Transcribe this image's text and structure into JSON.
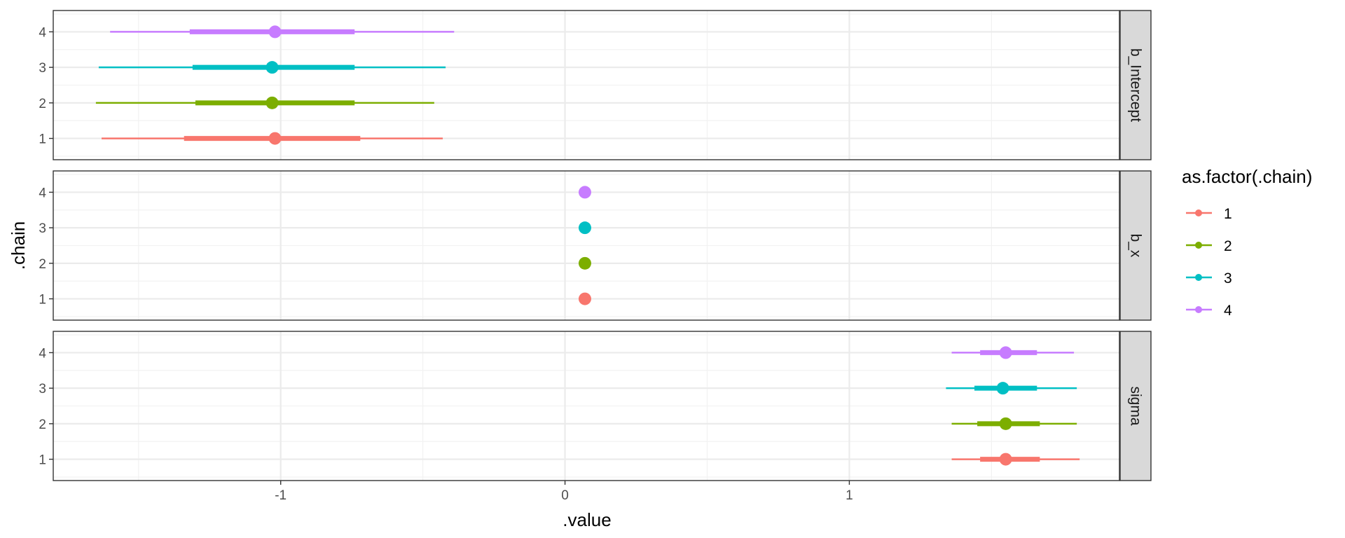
{
  "chart_data": {
    "type": "pointrange",
    "facet_by": "panel",
    "facet_strip_position": "right",
    "xlabel": ".value",
    "ylabel": ".chain",
    "xlim": [
      -1.8,
      1.95
    ],
    "x_ticks": [
      -1,
      0,
      1
    ],
    "x_tick_labels": [
      "-1",
      "0",
      "1"
    ],
    "y_categories": [
      "1",
      "2",
      "3",
      "4"
    ],
    "grid": true,
    "legend": {
      "title": "as.factor(.chain)",
      "placement": "right",
      "entries": [
        "1",
        "2",
        "3",
        "4"
      ],
      "colors": [
        "#F8766D",
        "#7CAE00",
        "#00BFC4",
        "#C77CFF"
      ]
    },
    "panels": [
      {
        "label": "b_Intercept",
        "series": [
          {
            "chain": "1",
            "point": -1.02,
            "inner": [
              -1.34,
              -0.72
            ],
            "outer": [
              -1.63,
              -0.43
            ]
          },
          {
            "chain": "2",
            "point": -1.03,
            "inner": [
              -1.3,
              -0.74
            ],
            "outer": [
              -1.65,
              -0.46
            ]
          },
          {
            "chain": "3",
            "point": -1.03,
            "inner": [
              -1.31,
              -0.74
            ],
            "outer": [
              -1.64,
              -0.42
            ]
          },
          {
            "chain": "4",
            "point": -1.02,
            "inner": [
              -1.32,
              -0.74
            ],
            "outer": [
              -1.6,
              -0.39
            ]
          }
        ]
      },
      {
        "label": "b_x",
        "series": [
          {
            "chain": "1",
            "point": 0.07,
            "inner": [
              0.07,
              0.07
            ],
            "outer": [
              0.07,
              0.07
            ]
          },
          {
            "chain": "2",
            "point": 0.07,
            "inner": [
              0.07,
              0.07
            ],
            "outer": [
              0.07,
              0.07
            ]
          },
          {
            "chain": "3",
            "point": 0.07,
            "inner": [
              0.07,
              0.07
            ],
            "outer": [
              0.07,
              0.07
            ]
          },
          {
            "chain": "4",
            "point": 0.07,
            "inner": [
              0.07,
              0.07
            ],
            "outer": [
              0.07,
              0.07
            ]
          }
        ]
      },
      {
        "label": "sigma",
        "series": [
          {
            "chain": "1",
            "point": 1.55,
            "inner": [
              1.46,
              1.67
            ],
            "outer": [
              1.36,
              1.81
            ]
          },
          {
            "chain": "2",
            "point": 1.55,
            "inner": [
              1.45,
              1.67
            ],
            "outer": [
              1.36,
              1.8
            ]
          },
          {
            "chain": "3",
            "point": 1.54,
            "inner": [
              1.44,
              1.66
            ],
            "outer": [
              1.34,
              1.8
            ]
          },
          {
            "chain": "4",
            "point": 1.55,
            "inner": [
              1.46,
              1.66
            ],
            "outer": [
              1.36,
              1.79
            ]
          }
        ]
      }
    ]
  }
}
